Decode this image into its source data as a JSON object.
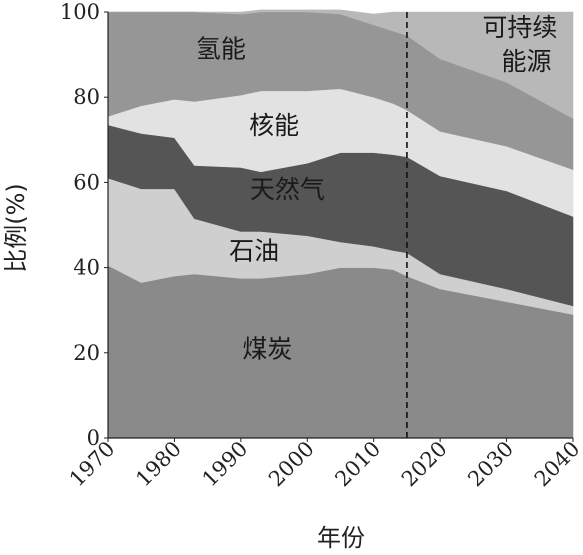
{
  "chart_data": {
    "type": "area",
    "stacked": true,
    "x": [
      1970,
      1975,
      1980,
      1983,
      1990,
      1993,
      2000,
      2005,
      2010,
      2013,
      2015,
      2020,
      2030,
      2040
    ],
    "x_ticks": [
      "1970",
      "1980",
      "1990",
      "2000",
      "2010",
      "2020",
      "2030",
      "2040"
    ],
    "y_ticks": [
      "0",
      "20",
      "40",
      "60",
      "80",
      "100"
    ],
    "xlim": [
      1970,
      2040
    ],
    "ylim": [
      0,
      100
    ],
    "xlabel": "年份",
    "ylabel": "比例(%)",
    "projection_line_x": 2015,
    "series": [
      {
        "name": "煤炭",
        "color": "#8a8a8a",
        "values": [
          40.5,
          36.5,
          38,
          38.5,
          37.5,
          37.5,
          38.5,
          40,
          40,
          39.5,
          38,
          35,
          32,
          29
        ]
      },
      {
        "name": "石油",
        "color": "#cfcfcf",
        "values": [
          20.5,
          22,
          20.5,
          13,
          11,
          11,
          9,
          6,
          5,
          4.5,
          5.5,
          3.5,
          3,
          2
        ]
      },
      {
        "name": "天然气",
        "color": "#555555",
        "values": [
          12.5,
          13,
          12,
          12.5,
          15,
          14,
          17,
          21,
          22,
          22.5,
          22.5,
          23,
          23,
          21
        ]
      },
      {
        "name": "核能",
        "color": "#e2e2e2",
        "values": [
          2,
          6.5,
          9,
          15,
          17,
          19,
          17,
          15,
          13,
          12,
          11,
          10.5,
          10.5,
          11
        ]
      },
      {
        "name": "氢能",
        "color": "#969696",
        "values": [
          24.5,
          22,
          20.5,
          21,
          19,
          18.5,
          18.5,
          17.5,
          17,
          17,
          17.5,
          17,
          15,
          12
        ]
      },
      {
        "name": "可持续能源",
        "color": "#b8b8b8",
        "values": [
          0,
          0,
          0,
          0,
          0.5,
          0.5,
          0.5,
          1,
          2.5,
          4.5,
          5.5,
          11,
          16.5,
          25
        ]
      }
    ],
    "labels": [
      {
        "series": "氢能",
        "text": "氢能",
        "x": 1987,
        "y": 91
      },
      {
        "series": "核能",
        "text": "核能",
        "x": 1995,
        "y": 73
      },
      {
        "series": "天然气",
        "text": "天然气",
        "x": 1997,
        "y": 58
      },
      {
        "series": "石油",
        "text": "石油",
        "x": 1992,
        "y": 43.5
      },
      {
        "series": "煤炭",
        "text": "煤炭",
        "x": 1994,
        "y": 20.5
      },
      {
        "series": "可持续能源",
        "text": "可持续",
        "x": 2032,
        "y": 96
      },
      {
        "series": "可持续能源",
        "text": "能源",
        "x": 2033,
        "y": 88
      }
    ]
  }
}
